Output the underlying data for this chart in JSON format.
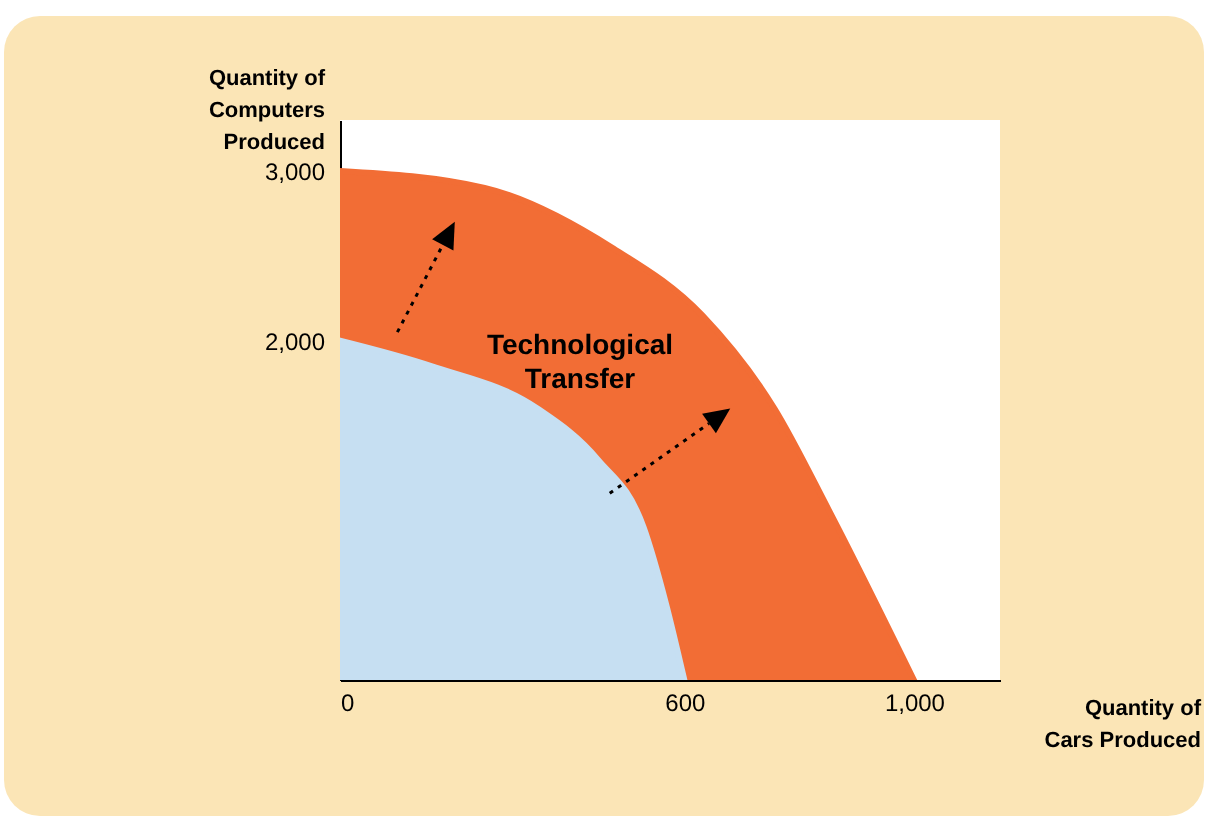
{
  "chart_data": {
    "type": "area",
    "xlabel": "Quantity of\nCars Produced",
    "ylabel": "Quantity of\nComputers\nProduced",
    "xlim": [
      0,
      1150
    ],
    "ylim": [
      0,
      3300
    ],
    "xticks": [
      0,
      600,
      {
        "value": 1000,
        "label": "1,000"
      }
    ],
    "yticks": [
      {
        "value": 2000,
        "label": "2,000"
      },
      {
        "value": 3000,
        "label": "3,000"
      }
    ],
    "grid": false,
    "annotations": [
      "Technological\nTransfer"
    ],
    "series": [
      {
        "type": "area",
        "color": "#f26d35",
        "x": [
          0,
          252,
          473,
          631,
          757,
          852,
          1000
        ],
        "values": [
          3000,
          2900,
          2550,
          2150,
          1600,
          1000,
          0
        ]
      },
      {
        "type": "area",
        "color": "#c6dff2",
        "x": [
          0,
          159,
          344,
          449,
          529,
          568,
          600
        ],
        "values": [
          2000,
          1850,
          1600,
          1300,
          900,
          450,
          0
        ]
      }
    ]
  }
}
